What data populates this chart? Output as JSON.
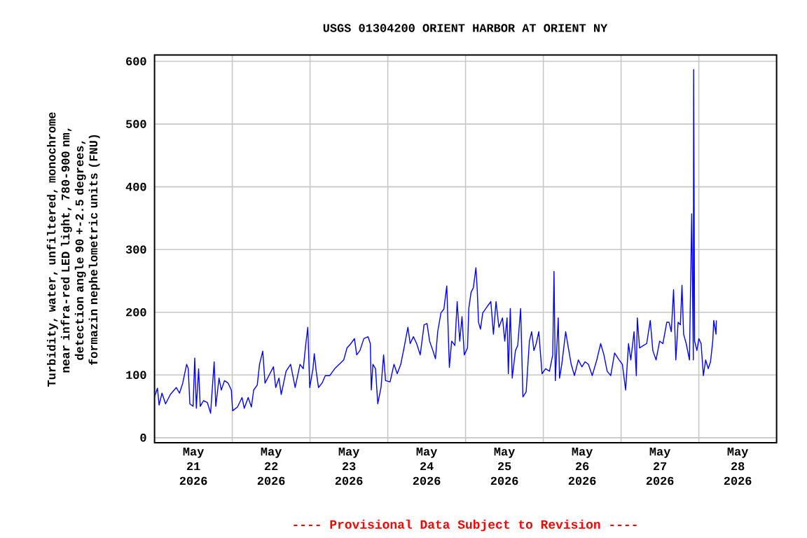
{
  "chart_data": {
    "type": "line",
    "title": "USGS 01304200 ORIENT HARBOR AT ORIENT NY",
    "ylabel": "Turbidity, water, unfiltered, monochrome near infra-red LED light, 780-900 nm, detection angle 90 +-2.5 degrees, formazin nephelometric units (FNU)",
    "annotations": [
      "---- Provisional Data Subject to Revision ----"
    ],
    "color": "#0000ff",
    "grid": true,
    "xlim": [
      "2026-05-21",
      "2026-05-29"
    ],
    "xticks": [
      {
        "value": "2026-05-21T12:00",
        "label": "May 21 2026"
      },
      {
        "value": "2026-05-22T12:00",
        "label": "May 22 2026"
      },
      {
        "value": "2026-05-23T12:00",
        "label": "May 23 2026"
      },
      {
        "value": "2026-05-24T12:00",
        "label": "May 24 2026"
      },
      {
        "value": "2026-05-25T12:00",
        "label": "May 25 2026"
      },
      {
        "value": "2026-05-26T12:00",
        "label": "May 26 2026"
      },
      {
        "value": "2026-05-27T12:00",
        "label": "May 27 2026"
      },
      {
        "value": "2026-05-28T12:00",
        "label": "May 28 2026"
      },
      {
        "value": "2026-05-22",
        "label": null
      },
      {
        "value": "2026-05-23",
        "label": null
      },
      {
        "value": "2026-05-24",
        "label": null
      },
      {
        "value": "2026-05-25",
        "label": null
      },
      {
        "value": "2026-05-26",
        "label": null
      },
      {
        "value": "2026-05-27",
        "label": null
      },
      {
        "value": "2026-05-28",
        "label": null
      }
    ],
    "ylim": [
      -8,
      610
    ],
    "yticks": [
      0,
      100,
      200,
      300,
      400,
      500,
      600
    ],
    "x": [
      "2026-05-21T00:00",
      "2026-05-21T00:54",
      "2026-05-21T01:24",
      "2026-05-21T02:18",
      "2026-05-21T03:24",
      "2026-05-21T04:54",
      "2026-05-21T06:42",
      "2026-05-21T07:42",
      "2026-05-21T08:42",
      "2026-05-21T09:54",
      "2026-05-21T10:24",
      "2026-05-21T10:54",
      "2026-05-21T11:54",
      "2026-05-21T12:24",
      "2026-05-21T12:54",
      "2026-05-21T13:36",
      "2026-05-21T14:06",
      "2026-05-21T15:06",
      "2026-05-21T16:18",
      "2026-05-21T17:18",
      "2026-05-21T18:24",
      "2026-05-21T18:54",
      "2026-05-21T19:54",
      "2026-05-21T20:36",
      "2026-05-21T21:36",
      "2026-05-21T22:42",
      "2026-05-21T23:42",
      "2026-05-22T00:06",
      "2026-05-22T01:36",
      "2026-05-22T03:00",
      "2026-05-22T03:42",
      "2026-05-22T04:54",
      "2026-05-22T05:54",
      "2026-05-22T06:36",
      "2026-05-22T07:42",
      "2026-05-22T08:24",
      "2026-05-22T09:24",
      "2026-05-22T10:06",
      "2026-05-22T11:36",
      "2026-05-22T12:42",
      "2026-05-22T13:24",
      "2026-05-22T14:24",
      "2026-05-22T15:06",
      "2026-05-22T16:36",
      "2026-05-22T18:00",
      "2026-05-22T19:24",
      "2026-05-22T20:54",
      "2026-05-22T21:54",
      "2026-05-22T22:42",
      "2026-05-22T23:18",
      "2026-05-22T23:54",
      "2026-05-23T00:54",
      "2026-05-23T01:18",
      "2026-05-23T01:54",
      "2026-05-23T02:36",
      "2026-05-23T03:42",
      "2026-05-23T04:42",
      "2026-05-23T06:06",
      "2026-05-23T07:36",
      "2026-05-23T09:00",
      "2026-05-23T10:24",
      "2026-05-23T11:24",
      "2026-05-23T12:36",
      "2026-05-23T13:42",
      "2026-05-23T14:24",
      "2026-05-23T15:24",
      "2026-05-23T16:36",
      "2026-05-23T17:54",
      "2026-05-23T18:36",
      "2026-05-23T18:54",
      "2026-05-23T19:24",
      "2026-05-23T20:12",
      "2026-05-23T20:54",
      "2026-05-23T21:54",
      "2026-05-23T22:42",
      "2026-05-23T23:18",
      "2026-05-24T00:42",
      "2026-05-24T01:54",
      "2026-05-24T02:54",
      "2026-05-24T04:00",
      "2026-05-24T05:00",
      "2026-05-24T06:12",
      "2026-05-24T06:54",
      "2026-05-24T07:54",
      "2026-05-24T08:54",
      "2026-05-24T10:00",
      "2026-05-24T11:12",
      "2026-05-24T12:06",
      "2026-05-24T12:54",
      "2026-05-24T13:54",
      "2026-05-24T14:42",
      "2026-05-24T15:24",
      "2026-05-24T16:24",
      "2026-05-24T17:18",
      "2026-05-24T18:12",
      "2026-05-24T19:00",
      "2026-05-24T19:42",
      "2026-05-24T20:42",
      "2026-05-24T21:24",
      "2026-05-24T22:12",
      "2026-05-24T22:54",
      "2026-05-24T23:36",
      "2026-05-25T00:36",
      "2026-05-25T01:00",
      "2026-05-25T01:42",
      "2026-05-25T02:24",
      "2026-05-25T03:12",
      "2026-05-25T03:36",
      "2026-05-25T04:00",
      "2026-05-25T04:36",
      "2026-05-25T05:18",
      "2026-05-25T06:48",
      "2026-05-25T07:48",
      "2026-05-25T08:36",
      "2026-05-25T09:24",
      "2026-05-25T10:18",
      "2026-05-25T11:24",
      "2026-05-25T12:06",
      "2026-05-25T12:48",
      "2026-05-25T13:12",
      "2026-05-25T13:48",
      "2026-05-25T14:24",
      "2026-05-25T15:24",
      "2026-05-25T16:06",
      "2026-05-25T17:00",
      "2026-05-25T17:42",
      "2026-05-25T18:42",
      "2026-05-25T19:42",
      "2026-05-25T20:24",
      "2026-05-25T21:06",
      "2026-05-25T21:48",
      "2026-05-25T22:36",
      "2026-05-25T23:36",
      "2026-05-26T00:42",
      "2026-05-26T01:54",
      "2026-05-26T02:54",
      "2026-05-26T03:18",
      "2026-05-26T03:42",
      "2026-05-26T04:36",
      "2026-05-26T05:00",
      "2026-05-26T05:42",
      "2026-05-26T06:54",
      "2026-05-26T07:36",
      "2026-05-26T08:36",
      "2026-05-26T09:36",
      "2026-05-26T10:48",
      "2026-05-26T11:54",
      "2026-05-26T12:54",
      "2026-05-26T13:54",
      "2026-05-26T15:06",
      "2026-05-26T16:30",
      "2026-05-26T17:42",
      "2026-05-26T18:42",
      "2026-05-26T19:42",
      "2026-05-26T20:48",
      "2026-05-26T22:00",
      "2026-05-26T23:24",
      "2026-05-27T00:24",
      "2026-05-27T01:24",
      "2026-05-27T02:18",
      "2026-05-27T03:00",
      "2026-05-27T04:00",
      "2026-05-27T04:42",
      "2026-05-27T05:00",
      "2026-05-27T05:42",
      "2026-05-27T06:54",
      "2026-05-27T07:54",
      "2026-05-27T09:00",
      "2026-05-27T09:48",
      "2026-05-27T10:48",
      "2026-05-27T11:54",
      "2026-05-27T12:54",
      "2026-05-27T14:06",
      "2026-05-27T14:48",
      "2026-05-27T15:30",
      "2026-05-27T16:12",
      "2026-05-27T16:54",
      "2026-05-27T17:36",
      "2026-05-27T18:18",
      "2026-05-27T18:48",
      "2026-05-27T19:18",
      "2026-05-27T20:06",
      "2026-05-27T21:06",
      "2026-05-27T21:48",
      "2026-05-27T22:18",
      "2026-05-27T22:24",
      "2026-05-27T22:42",
      "2026-05-27T23:24",
      "2026-05-28T00:00",
      "2026-05-28T00:42",
      "2026-05-28T01:24",
      "2026-05-28T02:06",
      "2026-05-28T02:54",
      "2026-05-28T03:36",
      "2026-05-28T04:18",
      "2026-05-28T04:36",
      "2026-05-28T05:18",
      "2026-05-28T05:24"
    ],
    "values": [
      65,
      79,
      52,
      71,
      54,
      69,
      80,
      71,
      87,
      117,
      110,
      54,
      50,
      127,
      47,
      110,
      50,
      59,
      56,
      39,
      121,
      50,
      95,
      76,
      91,
      87,
      76,
      43,
      49,
      64,
      47,
      64,
      49,
      76,
      84,
      117,
      138,
      87,
      102,
      113,
      80,
      95,
      69,
      106,
      117,
      80,
      117,
      110,
      150,
      176,
      80,
      110,
      134,
      106,
      80,
      87,
      99,
      99,
      110,
      117,
      124,
      143,
      150,
      158,
      132,
      139,
      158,
      161,
      150,
      76,
      117,
      110,
      54,
      80,
      132,
      91,
      89,
      117,
      102,
      117,
      143,
      176,
      150,
      161,
      150,
      132,
      180,
      182,
      154,
      139,
      126,
      169,
      199,
      205,
      242,
      112,
      154,
      147,
      217,
      154,
      193,
      132,
      143,
      206,
      232,
      239,
      271,
      236,
      184,
      173,
      199,
      210,
      217,
      165,
      217,
      176,
      191,
      154,
      191,
      102,
      206,
      95,
      139,
      147,
      206,
      65,
      73,
      154,
      169,
      139,
      150,
      169,
      102,
      110,
      106,
      132,
      265,
      91,
      191,
      95,
      117,
      169,
      147,
      117,
      99,
      124,
      113,
      121,
      117,
      99,
      124,
      150,
      132,
      106,
      99,
      135,
      124,
      117,
      76,
      150,
      124,
      169,
      99,
      191,
      143,
      147,
      150,
      187,
      139,
      124,
      154,
      150,
      184,
      184,
      169,
      236,
      124,
      184,
      180,
      243,
      165,
      150,
      124,
      357,
      124,
      587,
      154,
      139,
      158,
      150,
      99,
      124,
      110,
      121,
      154,
      187,
      165,
      187
    ]
  }
}
